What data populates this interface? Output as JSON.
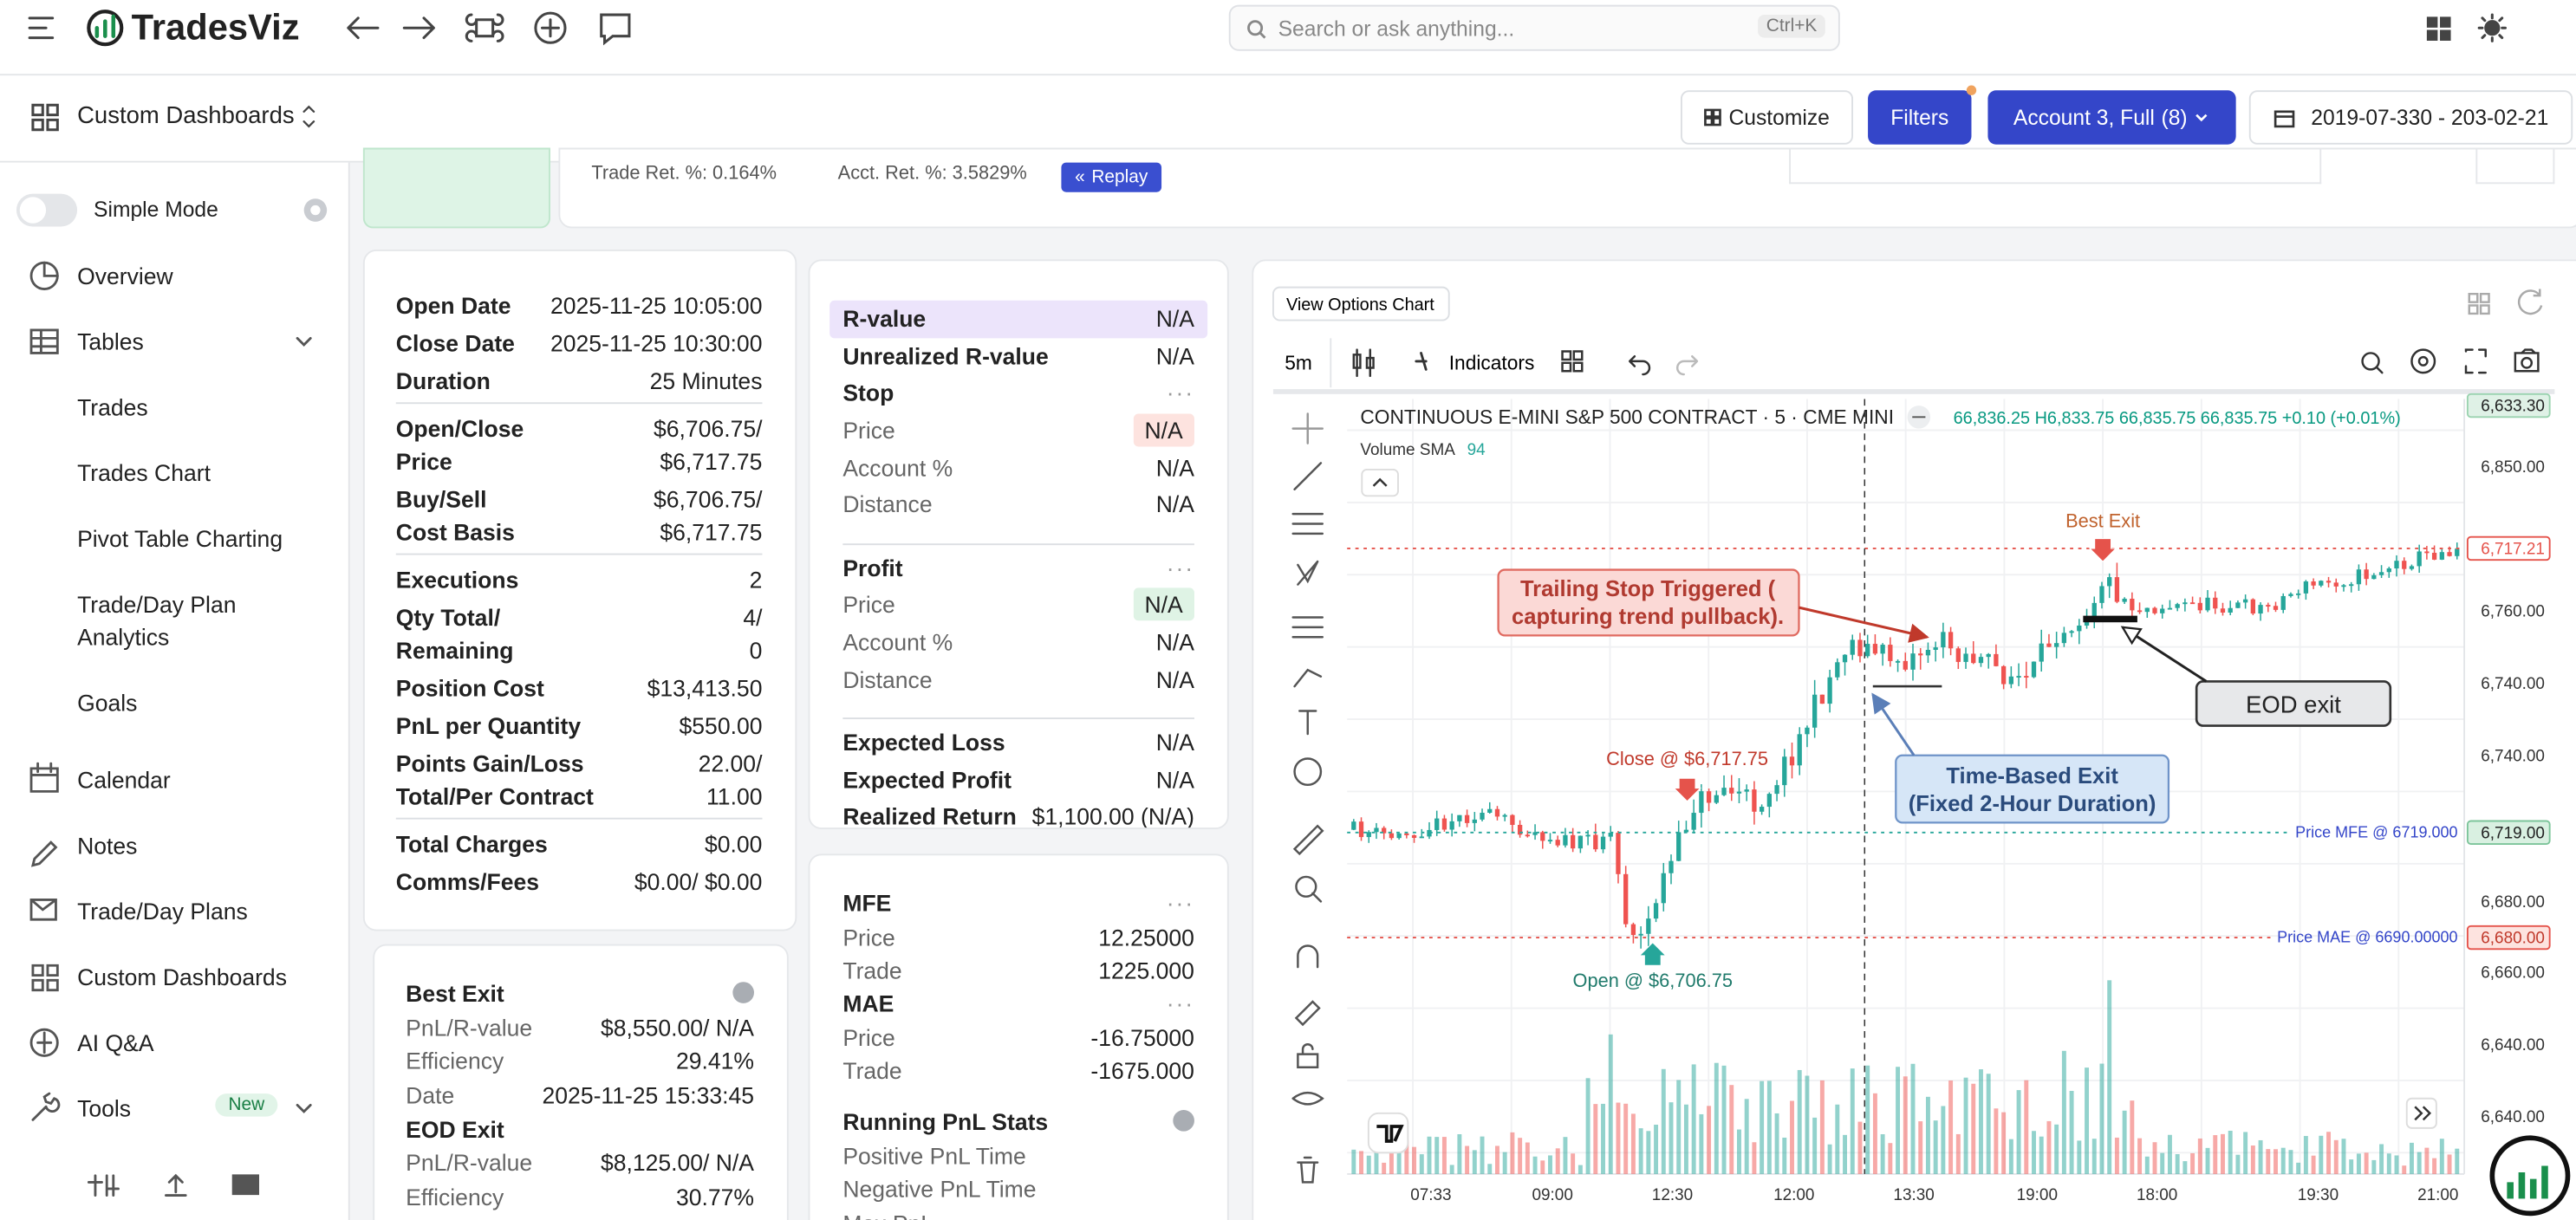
{
  "header": {
    "brand": "TradesViz",
    "search": "Search or ask anything...",
    "shortcut": "Ctrl+K"
  },
  "toolbar": {
    "title": "Custom Dashboards",
    "customize": "Customize",
    "filters": "Filters",
    "account": "Account 3, Full",
    "account_count": "(8)",
    "date_range": "2019-07-330 - 203-02-21"
  },
  "sidebar": {
    "simple_mode": "Simple Mode",
    "items": [
      "Overview",
      "Tables",
      "Trades",
      "Trades Chart",
      "Pivot Table Charting",
      [
        "Trade/Day Plan",
        "Analytics"
      ],
      "Goals",
      "Calendar",
      "Notes",
      "Trade/Day Plans",
      "Custom Dashboards",
      "AI Q&A",
      "Tools"
    ],
    "new_badge": "New"
  },
  "top_strip": {
    "trade_ret": "Trade Ret. %: 0.164%",
    "acct_ret": "Acct. Ret. %: 3.5829%",
    "replay": "Replay"
  },
  "trade_details": {
    "sections": [
      [
        {
          "label": "Open Date",
          "value": "2025-11-25 10:05:00"
        },
        {
          "label": "Close Date",
          "value": "2025-11-25 10:30:00"
        },
        {
          "label": "Duration",
          "value": "25 Minutes"
        }
      ],
      [
        {
          "label": [
            "Open/Close",
            "Price"
          ],
          "value": [
            "$6,706.75/",
            "$6,717.75"
          ]
        },
        {
          "label": [
            "Buy/Sell",
            "Cost Basis"
          ],
          "value": [
            "$6,706.75/",
            "$6,717.75"
          ]
        }
      ],
      [
        {
          "label": "Executions",
          "value": "2"
        },
        {
          "label": [
            "Qty Total/",
            "Remaining"
          ],
          "value": [
            "4/",
            "0"
          ]
        },
        {
          "label": "Position Cost",
          "value": "$13,413.50"
        },
        {
          "label": "PnL per Quantity",
          "value": "$550.00"
        },
        {
          "label": [
            "Points Gain/Loss",
            "Total/Per Contract"
          ],
          "value": [
            "22.00/",
            "11.00"
          ]
        }
      ],
      [
        {
          "label": "Total Charges",
          "value": "$0.00"
        },
        {
          "label": "Comms/Fees",
          "value": "$0.00/ $0.00"
        }
      ]
    ]
  },
  "r_panel": {
    "sections": [
      [
        {
          "label": "R-value",
          "value": "N/A",
          "bold": true,
          "highlight": "#ece4fb"
        },
        {
          "label": "Unrealized R-value",
          "value": "N/A",
          "bold": true
        },
        {
          "label": "Stop",
          "bold": true,
          "menu": true
        },
        {
          "label": "Price",
          "value": "N/A",
          "badge": "#fde3df"
        },
        {
          "label": "Account %",
          "value": "N/A"
        },
        {
          "label": "Distance",
          "value": "N/A"
        }
      ],
      [
        {
          "label": "Profit",
          "bold": true,
          "menu": true
        },
        {
          "label": "Price",
          "value": "N/A",
          "badge": "#dff3e5"
        },
        {
          "label": "Account %",
          "value": "N/A"
        },
        {
          "label": "Distance",
          "value": "N/A"
        }
      ],
      [
        {
          "label": "Expected Loss",
          "value": "N/A",
          "bold": true
        },
        {
          "label": "Expected Profit",
          "value": "N/A",
          "bold": true
        },
        {
          "label": "Realized Return",
          "value": "$1,100.00  (N/A)",
          "bold": true
        }
      ]
    ]
  },
  "mfe_panel": {
    "sections": [
      [
        {
          "label": "MFE",
          "bold": true,
          "menu": true
        },
        {
          "label": "Price",
          "value": "12.25000"
        },
        {
          "label": "Trade",
          "value": "1225.000"
        },
        {
          "label": "MAE",
          "bold": true,
          "menu": true
        },
        {
          "label": "Price",
          "value": "-16.75000"
        },
        {
          "label": "Trade",
          "value": "-1675.000"
        }
      ],
      [
        {
          "label": "Running PnL Stats",
          "bold": true,
          "help": true
        },
        {
          "label": "Positive PnL Time"
        },
        {
          "label": "Negative PnL Time"
        },
        {
          "label": "Max PnL"
        }
      ]
    ]
  },
  "exit_panel": {
    "sections": [
      [
        {
          "label": "Best Exit",
          "bold": true,
          "help": true
        },
        {
          "label": "PnL/R-value",
          "value": "$8,550.00/ N/A"
        },
        {
          "label": "Efficiency",
          "value": "29.41%"
        },
        {
          "label": "Date",
          "value": "2025-11-25 15:33:45"
        },
        {
          "label": "EOD Exit",
          "bold": true
        },
        {
          "label": "PnL/R-value",
          "value": "$8,125.00/ N/A"
        },
        {
          "label": "Efficiency",
          "value": "30.77%"
        }
      ]
    ]
  },
  "chart": {
    "view_options": "View Options Chart",
    "interval": "5m",
    "indicators": "Indicators",
    "symbol": "CONTINUOUS E-MINI S&P 500 CONTRACT · 5 · CME MINI",
    "ohlc": "66,836.25 H6,833.75 66,835.75 66,835.75 +0.10 (+0.01%)",
    "volume_label": "Volume SMA",
    "volume_value": "94",
    "price_labels": [
      "6,633.30",
      "6,850.00",
      "6,717.21",
      "6,760.00",
      "6,740.00",
      "6,740.00",
      "6,719.00",
      "6,680.00",
      "6,680.00",
      "6,660.00",
      "6,640.00",
      "6,640.00"
    ],
    "time_labels": [
      "07:33",
      "09:00",
      "12:30",
      "12:00",
      "13:30",
      "19:00",
      "18:00",
      "19:30",
      "21:00"
    ],
    "annotations": {
      "best_exit": "Best Exit",
      "trailing_stop": [
        "Trailing Stop Triggered (",
        "capturing trend pullback)."
      ],
      "eod_exit": "EOD exit",
      "close": "Close @ $6,717.75",
      "time_based": [
        "Time-Based Exit",
        "(Fixed 2-Hour Duration)"
      ],
      "open": "Open @ $6,706.75",
      "mfe": "Price MFE @ 6719.000",
      "mae": "Price MAE @ 6690.00000"
    }
  }
}
